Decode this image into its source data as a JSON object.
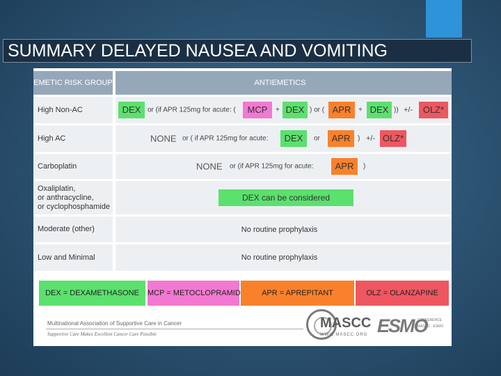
{
  "title": "SUMMARY DELAYED NAUSEA AND VOMITING",
  "header": {
    "risk_group": "EMETIC RISK GROUP",
    "antiemetics": "ANTIEMETICS"
  },
  "rows": {
    "high_non_ac": {
      "label": "High Non-AC",
      "dex1": "DEX",
      "or_if": "or (if APR 125mg for acute: (",
      "mcp": "MCP",
      "plus1": "+",
      "dex2": "DEX",
      "or_paren": ") or (",
      "apr": "APR",
      "plus2": "+",
      "dex3": "DEX",
      "close": "))",
      "plusminus": "+/-",
      "olz": "OLZ*"
    },
    "high_ac": {
      "label": "High AC",
      "none": "NONE",
      "or_if": "or ( if APR 125mg for acute:",
      "dex": "DEX",
      "or": "or",
      "apr": "APR",
      "close": ")",
      "plusminus": "+/-",
      "olz": "OLZ*"
    },
    "carboplatin": {
      "label": "Carboplatin",
      "none": "NONE",
      "or_if": "or (if APR 125mg for acute:",
      "apr": "APR",
      "close": ")"
    },
    "oxaliplatin": {
      "label_line1": "Oxaliplatin,",
      "label_line2": "or anthracycline,",
      "label_line3": "or cyclophosphamide",
      "dex_considered": "DEX can be considered"
    },
    "moderate": {
      "label": "Moderate (other)",
      "text": "No routine prophylaxis"
    },
    "low": {
      "label": "Low and Minimal",
      "text": "No routine prophylaxis"
    }
  },
  "legend": {
    "dex": "DEX = DEXAMETHASONE",
    "mcp": "MCP = METOCLOPRAMIDE",
    "apr": "APR = APREPITANT",
    "olz": "OLZ = OLANZAPINE"
  },
  "footer": {
    "org": "Multinational Association of Supportive Care in Cancer",
    "tagline": "Supportive Care Makes Excellent Cancer Care Possible",
    "masc_logo": "MASCC",
    "masc_url": "WWW.MASCC.ORG",
    "esmo_logo": "ESMO",
    "esmo_sub": "CONFERENCE MASCC · ESMO"
  },
  "colors": {
    "green": "#5ce06e",
    "pink": "#f279d1",
    "orange": "#f9812b",
    "red": "#ee5760",
    "header": "#95a8ba",
    "row_bg": "#edf0f3"
  }
}
